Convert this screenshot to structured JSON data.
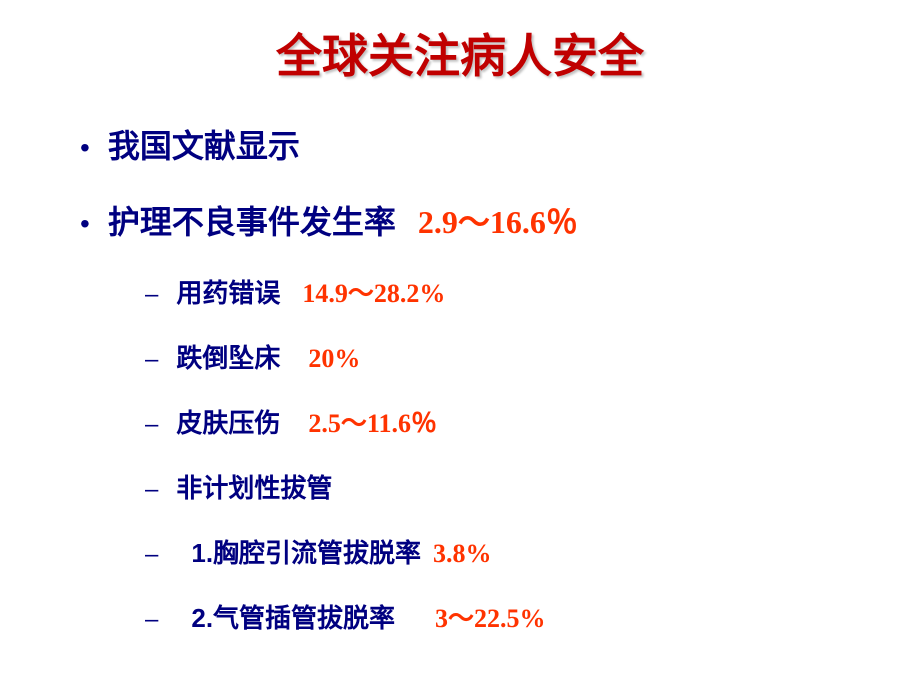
{
  "title": "全球关注病人安全",
  "bullets": {
    "level1": [
      {
        "text": "我国文献显示",
        "value": ""
      },
      {
        "text": "护理不良事件发生率",
        "value": "2.9～16.6％"
      }
    ],
    "level2": [
      {
        "text": "用药错误",
        "value": "14.9～28.2%",
        "spacing_class": "spacer-sm"
      },
      {
        "text": "跌倒坠床",
        "value": "20%",
        "spacing_class": "spacer-md"
      },
      {
        "text": "皮肤压伤",
        "value": "2.5～11.6％",
        "spacing_class": "spacer-md"
      },
      {
        "text": "非计划性拔管",
        "value": "",
        "spacing_class": ""
      },
      {
        "text": "1.胸腔引流管拔脱率",
        "value": "3.8%",
        "spacing_class": "spacer-num",
        "indent": true
      },
      {
        "text": "2.气管插管拔脱率",
        "value": "3～22.5%",
        "spacing_class": "spacer-num2",
        "indent": true
      }
    ]
  },
  "colors": {
    "title_color": "#c00000",
    "text_color": "#000080",
    "value_color": "#ff3300",
    "background": "#ffffff"
  },
  "typography": {
    "title_fontsize": 46,
    "level1_fontsize": 32,
    "level2_fontsize": 26
  }
}
